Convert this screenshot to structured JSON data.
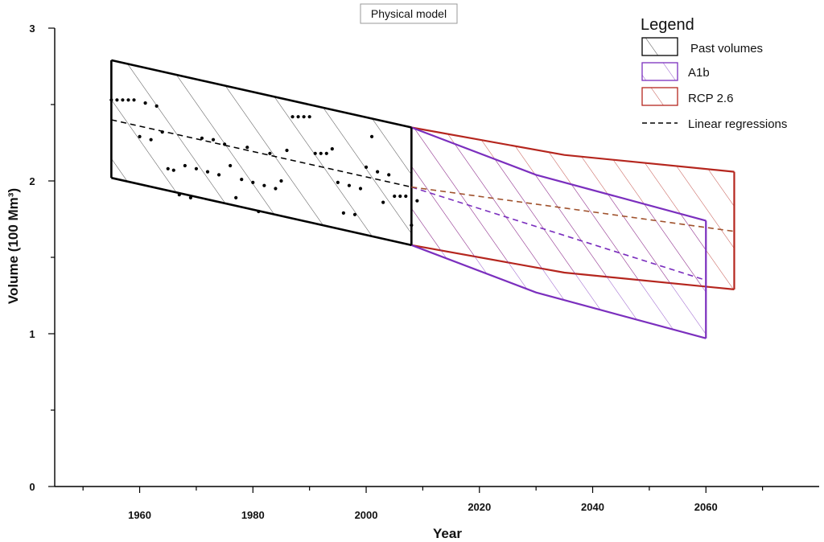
{
  "chart_data": {
    "type": "area",
    "title": "Physical model",
    "xlabel": "Year",
    "ylabel": "Volume (100 Mm³)",
    "xlim": [
      1945,
      2080
    ],
    "ylim": [
      0,
      3
    ],
    "x_ticks": [
      1960,
      1980,
      2000,
      2020,
      2040,
      2060
    ],
    "y_ticks": [
      0,
      1,
      2,
      3
    ],
    "legend": {
      "title": "Legend",
      "placement": "top-right",
      "entries": [
        "Past volumes",
        "A1b",
        "RCP 2.6",
        "Linear regressions"
      ]
    },
    "colors": {
      "past": "#000000",
      "a1b": "#7b2fbe",
      "rcp": "#b5261e",
      "regression_future_rcp": "#a0522d"
    },
    "bands": [
      {
        "name": "Past volumes",
        "color": "#000000",
        "upper": [
          [
            1955,
            2.79
          ],
          [
            2008,
            2.35
          ]
        ],
        "lower": [
          [
            1955,
            2.02
          ],
          [
            2008,
            1.58
          ]
        ]
      },
      {
        "name": "A1b",
        "color": "#7b2fbe",
        "upper": [
          [
            2008,
            2.35
          ],
          [
            2030,
            2.04
          ],
          [
            2060,
            1.74
          ]
        ],
        "lower": [
          [
            2008,
            1.58
          ],
          [
            2030,
            1.27
          ],
          [
            2060,
            0.97
          ]
        ]
      },
      {
        "name": "RCP 2.6",
        "color": "#b5261e",
        "upper": [
          [
            2008,
            2.35
          ],
          [
            2035,
            2.17
          ],
          [
            2065,
            2.06
          ]
        ],
        "lower": [
          [
            2008,
            1.58
          ],
          [
            2035,
            1.4
          ],
          [
            2065,
            1.29
          ]
        ]
      }
    ],
    "regressions": [
      {
        "name": "Past",
        "color": "#000000",
        "points": [
          [
            1955,
            2.4
          ],
          [
            2008,
            1.96
          ]
        ]
      },
      {
        "name": "A1b",
        "color": "#7b2fbe",
        "points": [
          [
            2008,
            1.96
          ],
          [
            2060,
            1.35
          ]
        ]
      },
      {
        "name": "RCP 2.6",
        "color": "#a0522d",
        "points": [
          [
            2008,
            1.96
          ],
          [
            2065,
            1.67
          ]
        ]
      }
    ],
    "observations": [
      [
        1955,
        2.53
      ],
      [
        1956,
        2.53
      ],
      [
        1957,
        2.53
      ],
      [
        1958,
        2.53
      ],
      [
        1959,
        2.53
      ],
      [
        1960,
        2.29
      ],
      [
        1961,
        2.51
      ],
      [
        1962,
        2.27
      ],
      [
        1963,
        2.49
      ],
      [
        1964,
        2.32
      ],
      [
        1965,
        2.08
      ],
      [
        1966,
        2.07
      ],
      [
        1967,
        1.91
      ],
      [
        1968,
        2.1
      ],
      [
        1969,
        1.89
      ],
      [
        1970,
        2.08
      ],
      [
        1971,
        2.28
      ],
      [
        1972,
        2.06
      ],
      [
        1973,
        2.27
      ],
      [
        1974,
        2.04
      ],
      [
        1975,
        2.24
      ],
      [
        1976,
        2.1
      ],
      [
        1977,
        1.89
      ],
      [
        1978,
        2.01
      ],
      [
        1979,
        2.22
      ],
      [
        1980,
        1.99
      ],
      [
        1981,
        1.8
      ],
      [
        1982,
        1.97
      ],
      [
        1983,
        2.18
      ],
      [
        1984,
        1.95
      ],
      [
        1985,
        2.0
      ],
      [
        1986,
        2.2
      ],
      [
        1987,
        2.42
      ],
      [
        1988,
        2.42
      ],
      [
        1989,
        2.42
      ],
      [
        1990,
        2.42
      ],
      [
        1991,
        2.18
      ],
      [
        1992,
        2.18
      ],
      [
        1993,
        2.18
      ],
      [
        1994,
        2.21
      ],
      [
        1995,
        1.99
      ],
      [
        1996,
        1.79
      ],
      [
        1997,
        1.97
      ],
      [
        1998,
        1.78
      ],
      [
        1999,
        1.95
      ],
      [
        2000,
        2.09
      ],
      [
        2001,
        2.29
      ],
      [
        2002,
        2.06
      ],
      [
        2003,
        1.86
      ],
      [
        2004,
        2.04
      ],
      [
        2005,
        1.9
      ],
      [
        2006,
        1.9
      ],
      [
        2007,
        1.9
      ],
      [
        2008,
        1.71
      ],
      [
        2009,
        1.87
      ]
    ]
  }
}
